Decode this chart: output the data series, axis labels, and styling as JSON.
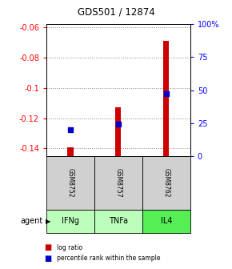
{
  "title": "GDS501 / 12874",
  "samples": [
    "IFNg",
    "TNFa",
    "IL4"
  ],
  "gsm_labels": [
    "GSM8752",
    "GSM8757",
    "GSM8762"
  ],
  "log_ratios": [
    -0.1395,
    -0.113,
    -0.069
  ],
  "percentile_ranks": [
    20,
    24,
    47
  ],
  "ylim_left": [
    -0.145,
    -0.058
  ],
  "ylim_right": [
    0,
    100
  ],
  "left_ticks": [
    -0.06,
    -0.08,
    -0.1,
    -0.12,
    -0.14
  ],
  "right_ticks": [
    0,
    25,
    50,
    75,
    100
  ],
  "bar_color": "#cc0000",
  "dot_color": "#0000cc",
  "agent_colors": [
    "#bbffbb",
    "#bbffbb",
    "#55ee55"
  ],
  "gsm_bg_color": "#d0d0d0",
  "bar_baseline": -0.145,
  "grid_color": "#888888",
  "x_positions": [
    0.5,
    1.5,
    2.5
  ],
  "xlim": [
    0,
    3
  ],
  "bar_width": 0.12,
  "left_tick_labels": [
    "-0.06",
    "-0.08",
    "-0.1",
    "-0.12",
    "-0.14"
  ],
  "right_tick_labels": [
    "0",
    "25",
    "50",
    "75",
    "100%"
  ]
}
